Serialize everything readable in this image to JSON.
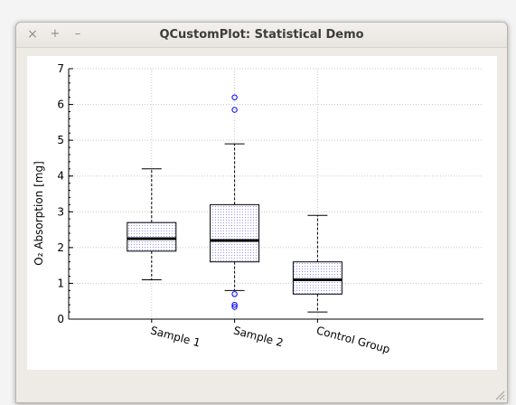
{
  "window": {
    "title": "QCustomPlot: Statistical Demo",
    "buttons": {
      "close": "×",
      "maximize": "+",
      "minimize": "–"
    }
  },
  "chart_data": {
    "type": "boxplot",
    "title": "",
    "xlabel": "",
    "ylabel": "O₂ Absorption [mg]",
    "ylim": [
      0,
      7
    ],
    "xlim": [
      0,
      5
    ],
    "yticks": [
      "0",
      "1",
      "2",
      "3",
      "4",
      "5",
      "6",
      "7"
    ],
    "grid": true,
    "categories": [
      {
        "name": "Sample 1",
        "x": 1,
        "min": 1.1,
        "q1": 1.9,
        "median": 2.25,
        "q3": 2.7,
        "max": 4.2,
        "outliers": []
      },
      {
        "name": "Sample 2",
        "x": 2,
        "min": 0.8,
        "q1": 1.6,
        "median": 2.2,
        "q3": 3.2,
        "max": 4.9,
        "outliers": [
          0.7,
          0.34,
          0.4,
          6.2,
          5.85
        ]
      },
      {
        "name": "Control Group",
        "x": 3,
        "min": 0.2,
        "q1": 0.7,
        "median": 1.1,
        "q3": 1.6,
        "max": 2.9,
        "outliers": []
      }
    ],
    "colors": {
      "outline": "#000000",
      "fill": "#9696ff",
      "outlier": "#0000ff",
      "grid": "#c8c8c8"
    }
  }
}
